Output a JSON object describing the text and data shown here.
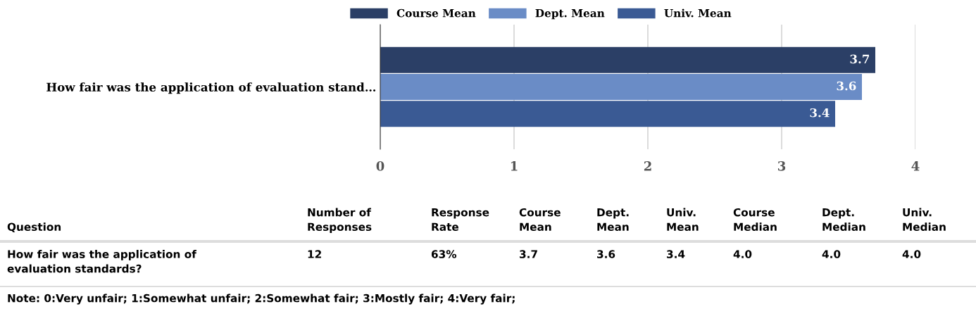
{
  "chart_data": {
    "type": "bar",
    "orientation": "horizontal",
    "categories": [
      "How fair was the application of evaluation stand…"
    ],
    "series": [
      {
        "name": "Course Mean",
        "color": "#2b3f66",
        "values": [
          3.7
        ]
      },
      {
        "name": "Dept. Mean",
        "color": "#6a8cc6",
        "values": [
          3.6
        ]
      },
      {
        "name": "Univ. Mean",
        "color": "#3a5a94",
        "values": [
          3.4
        ]
      }
    ],
    "xlim": [
      0,
      4
    ],
    "xticks": [
      0,
      1,
      2,
      3,
      4
    ],
    "grid": "x",
    "legend": "top",
    "data_labels": true,
    "annotations": [
      "Question",
      "Number of\nResponses",
      "Response\nRate",
      "Course\nMean",
      "Dept.\nMean",
      "Univ.\nMean",
      "Course\nMedian",
      "Dept.\nMedian",
      "Univ.\nMedian",
      "How fair was the application of\nevaluation standards?",
      "12",
      "63%",
      "3.7",
      "3.6",
      "3.4",
      "4.0",
      "4.0",
      "4.0",
      "Note: 0:Very unfair; 1:Somewhat unfair; 2:Somewhat fair; 3:Mostly fair; 4:Very fair;"
    ]
  }
}
